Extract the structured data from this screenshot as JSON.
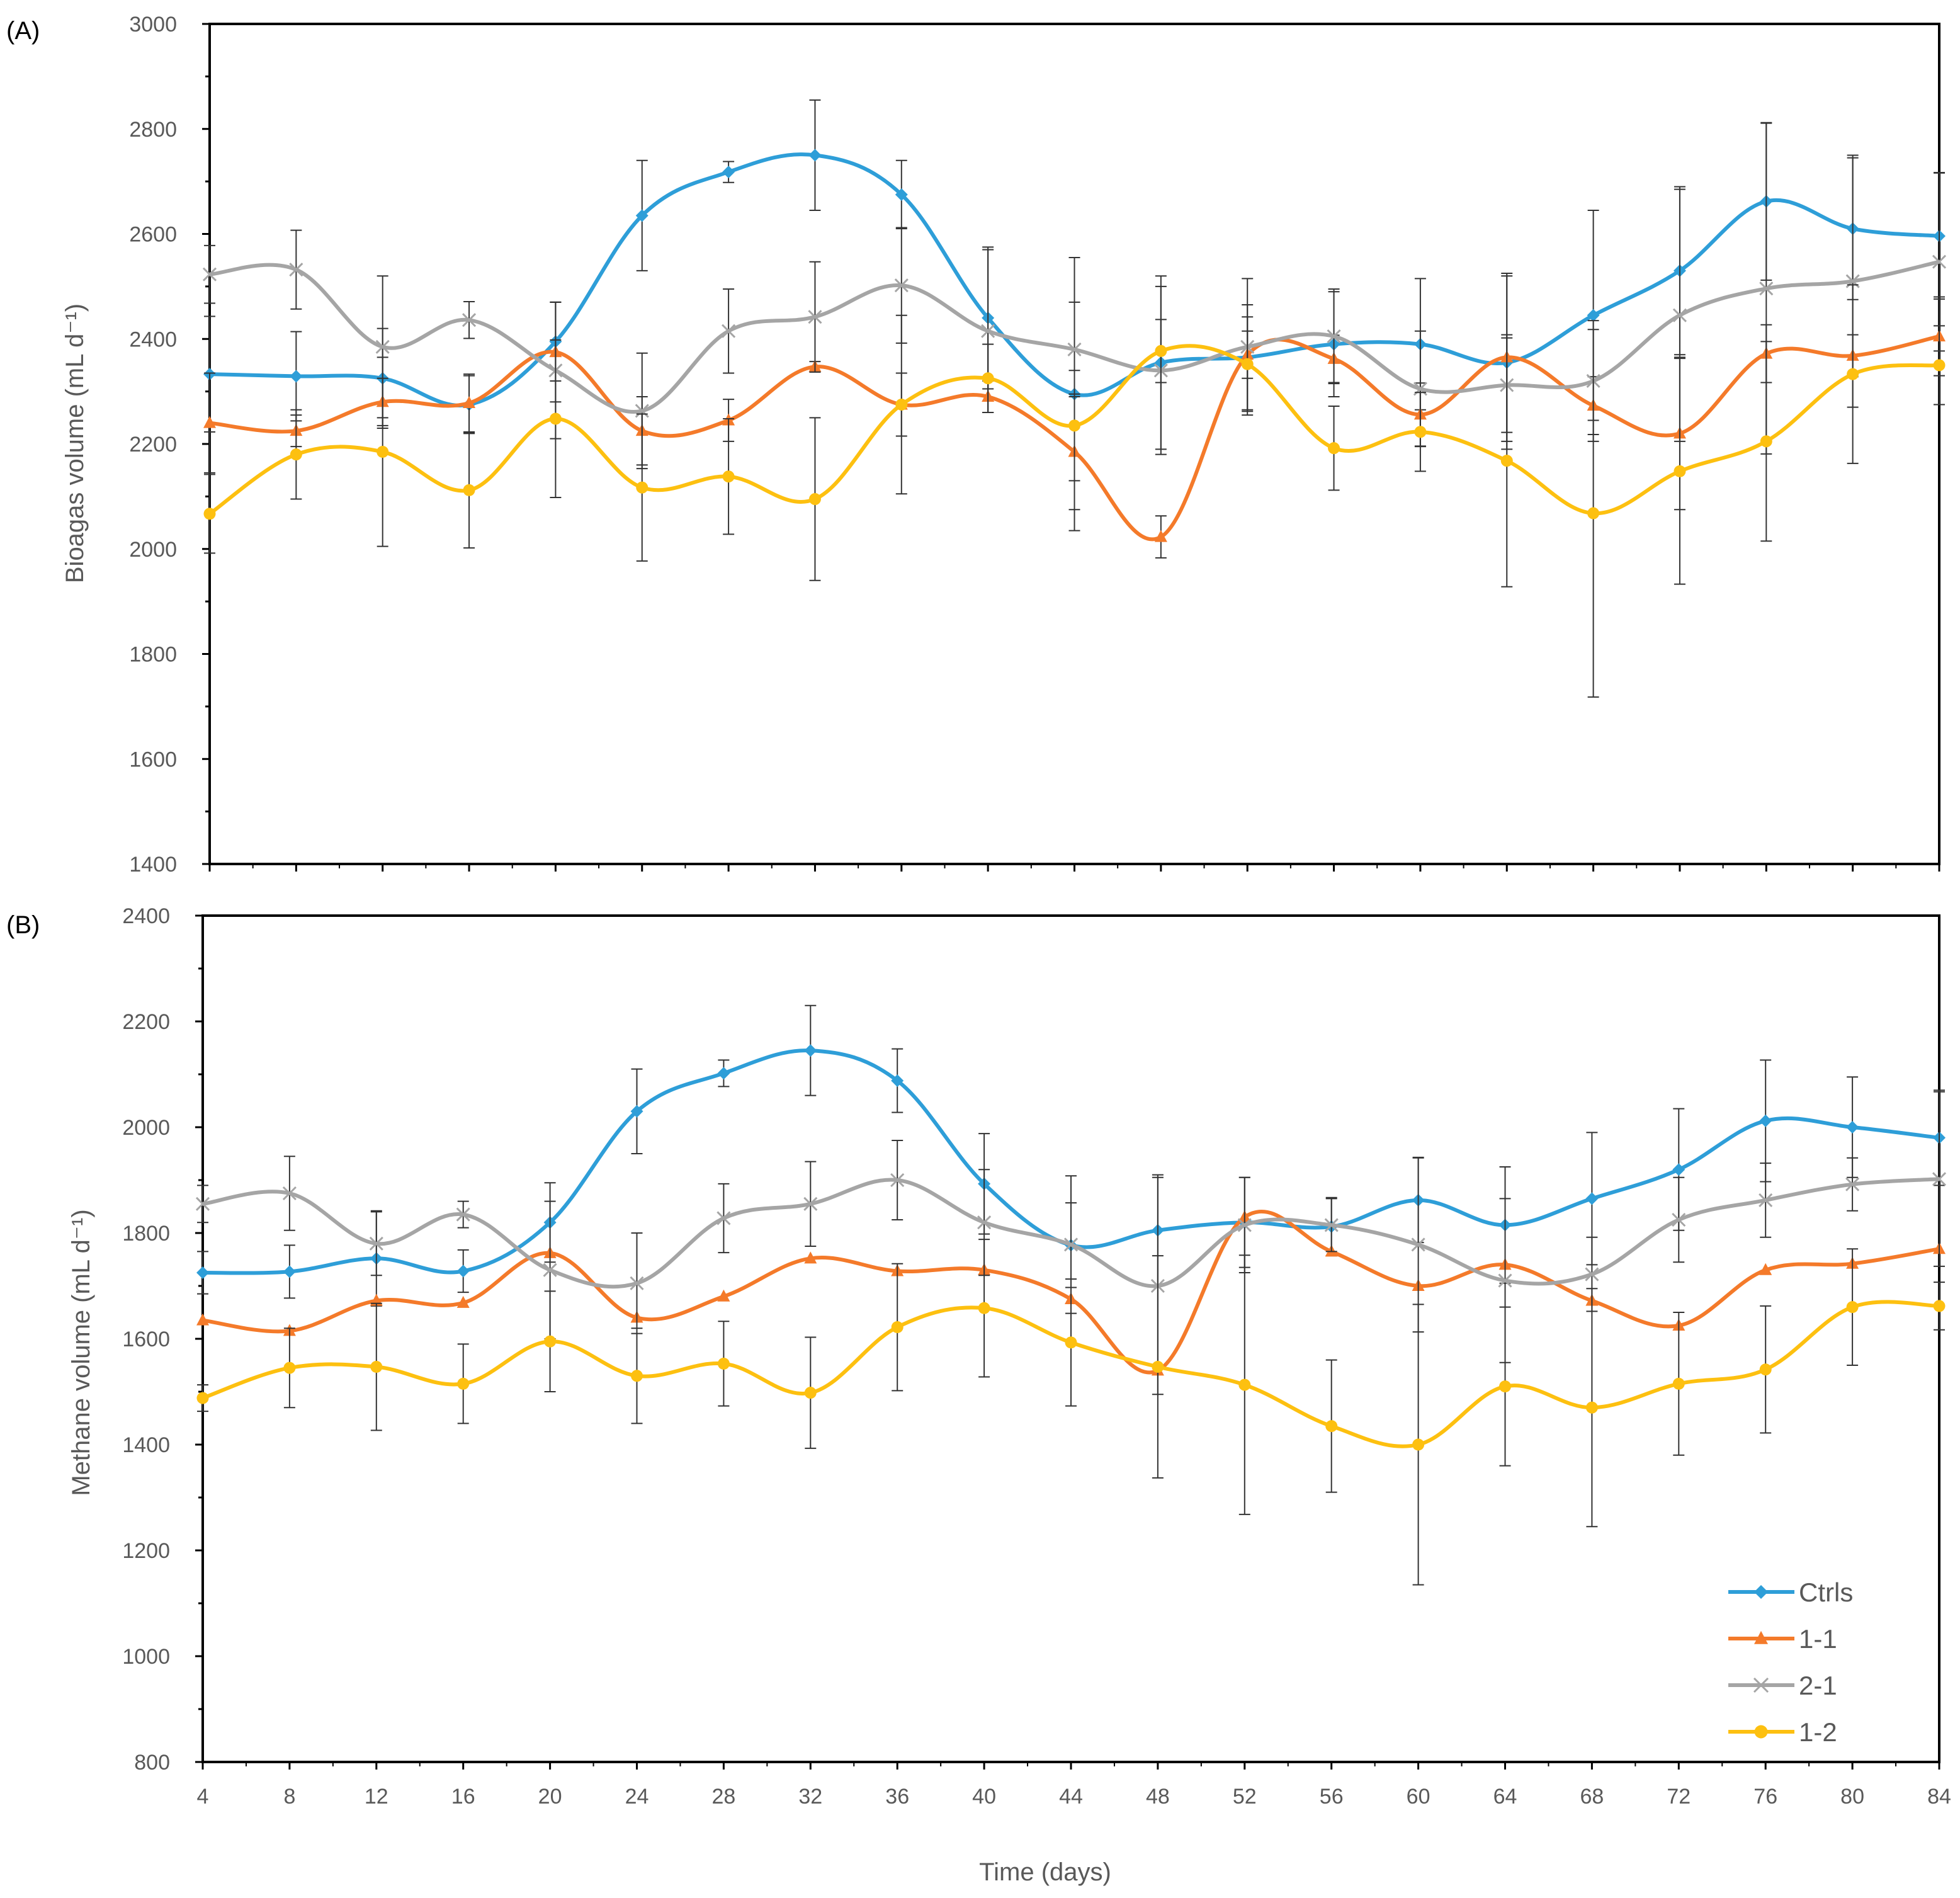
{
  "figure": {
    "xlabel": "Time (days)"
  },
  "legend": {
    "items": [
      {
        "label": "Ctrls",
        "color": "#2E9ED8",
        "marker": "diamond"
      },
      {
        "label": "1-1",
        "color": "#F47A2A",
        "marker": "triangle"
      },
      {
        "label": "2-1",
        "color": "#A5A5A5",
        "marker": "x"
      },
      {
        "label": "1-2",
        "color": "#FDC010",
        "marker": "circle"
      }
    ]
  },
  "chart_data": [
    {
      "type": "line",
      "panel_label": "(A)",
      "title": "",
      "xlabel": "",
      "ylabel": "Bioagas volume (mL d⁻¹)",
      "ylim": [
        1400,
        3000
      ],
      "yticks": [
        1400,
        1600,
        1800,
        2000,
        2200,
        2400,
        2600,
        2800,
        3000
      ],
      "xlim": [
        4,
        84
      ],
      "x": [
        4,
        8,
        12,
        16,
        20,
        24,
        28,
        32,
        36,
        40,
        44,
        48,
        52,
        56,
        60,
        64,
        68,
        72,
        76,
        80,
        84
      ],
      "series": [
        {
          "name": "Ctrls",
          "color": "#2E9ED8",
          "marker": "diamond",
          "values": [
            2333,
            2329,
            2325,
            2275,
            2395,
            2635,
            2718,
            2750,
            2675,
            2440,
            2295,
            2355,
            2365,
            2390,
            2390,
            2355,
            2445,
            2530,
            2662,
            2610,
            2596
          ],
          "errors": [
            110,
            85,
            95,
            55,
            75,
            105,
            20,
            105,
            65,
            135,
            260,
            165,
            100,
            100,
            125,
            165,
            200,
            160,
            150,
            135,
            120
          ]
        },
        {
          "name": "1-1",
          "color": "#F47A2A",
          "marker": "triangle",
          "values": [
            2240,
            2225,
            2280,
            2278,
            2375,
            2225,
            2245,
            2347,
            2275,
            2290,
            2185,
            2023,
            2370,
            2362,
            2256,
            2365,
            2273,
            2220,
            2372,
            2368,
            2405
          ],
          "errors": [
            95,
            30,
            45,
            55,
            95,
            65,
            40,
            10,
            60,
            30,
            110,
            40,
            45,
            45,
            60,
            160,
            55,
            145,
            55,
            40,
            75
          ]
        },
        {
          "name": "2-1",
          "color": "#A5A5A5",
          "marker": "x",
          "values": [
            2523,
            2532,
            2385,
            2436,
            2340,
            2263,
            2415,
            2442,
            2502,
            2415,
            2380,
            2340,
            2385,
            2405,
            2305,
            2312,
            2320,
            2445,
            2496,
            2510,
            2547
          ],
          "errors": [
            55,
            75,
            135,
            35,
            130,
            110,
            80,
            105,
            110,
            155,
            90,
            160,
            130,
            90,
            110,
            90,
            115,
            240,
            315,
            240,
            170
          ]
        },
        {
          "name": "1-2",
          "color": "#FDC010",
          "marker": "circle",
          "values": [
            2067,
            2180,
            2185,
            2112,
            2248,
            2117,
            2138,
            2095,
            2275,
            2325,
            2235,
            2377,
            2352,
            2192,
            2223,
            2168,
            2068,
            2148,
            2205,
            2333,
            2350
          ],
          "errors": [
            75,
            85,
            180,
            110,
            150,
            140,
            110,
            155,
            170,
            65,
            105,
            60,
            90,
            80,
            75,
            240,
            350,
            215,
            190,
            170,
            75
          ]
        }
      ]
    },
    {
      "type": "line",
      "panel_label": "(B)",
      "title": "",
      "xlabel": "Time (days)",
      "ylabel": "Methane volume (mL d⁻¹)",
      "ylim": [
        800,
        2400
      ],
      "yticks": [
        800,
        1000,
        1200,
        1400,
        1600,
        1800,
        2000,
        2200,
        2400
      ],
      "xlim": [
        4,
        84
      ],
      "x": [
        4,
        8,
        12,
        16,
        20,
        24,
        28,
        32,
        36,
        40,
        44,
        48,
        52,
        56,
        60,
        64,
        68,
        72,
        76,
        80,
        84
      ],
      "xticks": [
        "4",
        "8",
        "12",
        "16",
        "20",
        "24",
        "28",
        "32",
        "36",
        "40",
        "44",
        "48",
        "52",
        "56",
        "60",
        "64",
        "68",
        "72",
        "76",
        "80",
        "84"
      ],
      "legend_position": "bottom-right",
      "series": [
        {
          "name": "Ctrls",
          "color": "#2E9ED8",
          "marker": "diamond",
          "values": [
            1725,
            1727,
            1752,
            1728,
            1820,
            2030,
            2102,
            2145,
            2088,
            1893,
            1777,
            1805,
            1820,
            1812,
            1862,
            1815,
            1865,
            1920,
            2012,
            2000,
            1980
          ],
          "errors": [
            40,
            50,
            90,
            40,
            75,
            80,
            25,
            85,
            60,
            95,
            80,
            105,
            85,
            55,
            80,
            110,
            125,
            115,
            115,
            95,
            90
          ]
        },
        {
          "name": "1-1",
          "color": "#F47A2A",
          "marker": "triangle",
          "values": [
            1635,
            1615,
            1672,
            1668,
            1762,
            1640,
            1680,
            1752,
            1728,
            1730,
            1675,
            1540,
            1830,
            1765,
            1700,
            1740,
            1672,
            1625,
            1730,
            1742,
            1770
          ]
        },
        {
          "name": "2-1",
          "color": "#A5A5A5",
          "marker": "x",
          "values": [
            1855,
            1875,
            1780,
            1835,
            1730,
            1705,
            1828,
            1855,
            1900,
            1820,
            1778,
            1700,
            1815,
            1815,
            1778,
            1710,
            1722,
            1825,
            1862,
            1892,
            1902
          ],
          "errors": [
            35,
            70,
            60,
            25,
            130,
            95,
            65,
            80,
            75,
            100,
            130,
            205,
            90,
            50,
            165,
            155,
            70,
            80,
            70,
            50,
            165
          ]
        },
        {
          "name": "1-2",
          "color": "#FDC010",
          "marker": "circle",
          "values": [
            1488,
            1545,
            1547,
            1515,
            1595,
            1530,
            1553,
            1498,
            1622,
            1658,
            1593,
            1547,
            1513,
            1435,
            1400,
            1510,
            1470,
            1515,
            1542,
            1660,
            1662
          ],
          "errors": [
            25,
            75,
            120,
            75,
            95,
            90,
            80,
            105,
            120,
            130,
            120,
            210,
            245,
            125,
            265,
            150,
            225,
            135,
            120,
            110,
            45
          ]
        }
      ]
    }
  ]
}
